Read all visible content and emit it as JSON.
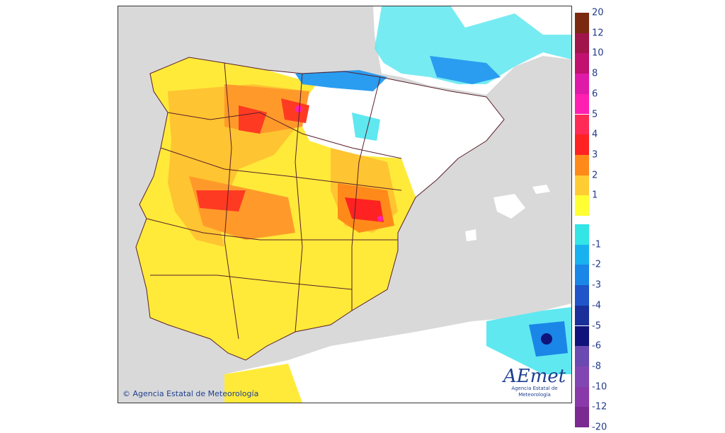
{
  "copyright": "© Agencia Estatal de Meteorología",
  "logo": {
    "word": "AEmet",
    "subtitle": "Agencia Estatal de Meteorología"
  },
  "legend": {
    "positive": [
      {
        "label": "20",
        "color": "#7b2a10"
      },
      {
        "label": "12",
        "color": "#a0154a"
      },
      {
        "label": "10",
        "color": "#c0126e"
      },
      {
        "label": "8",
        "color": "#e01aa8"
      },
      {
        "label": "6",
        "color": "#ff1fb0"
      },
      {
        "label": "5",
        "color": "#ff2a55"
      },
      {
        "label": "4",
        "color": "#ff2222"
      },
      {
        "label": "3",
        "color": "#ff8a1a"
      },
      {
        "label": "2",
        "color": "#ffcc33"
      },
      {
        "label": "1",
        "color": "#ffff33"
      }
    ],
    "negative": [
      {
        "label": "-1",
        "color": "#33e5e5"
      },
      {
        "label": "-2",
        "color": "#19b2f0"
      },
      {
        "label": "-3",
        "color": "#1a86e8"
      },
      {
        "label": "-4",
        "color": "#1f55c8"
      },
      {
        "label": "-5",
        "color": "#1a2f9a"
      },
      {
        "label": "-6",
        "color": "#10147a"
      },
      {
        "label": "-8",
        "color": "#6a4ab0"
      },
      {
        "label": "-10",
        "color": "#8246b2"
      },
      {
        "label": "-12",
        "color": "#8a3aa8"
      },
      {
        "label": "-20",
        "color": "#7a2a90"
      }
    ]
  }
}
